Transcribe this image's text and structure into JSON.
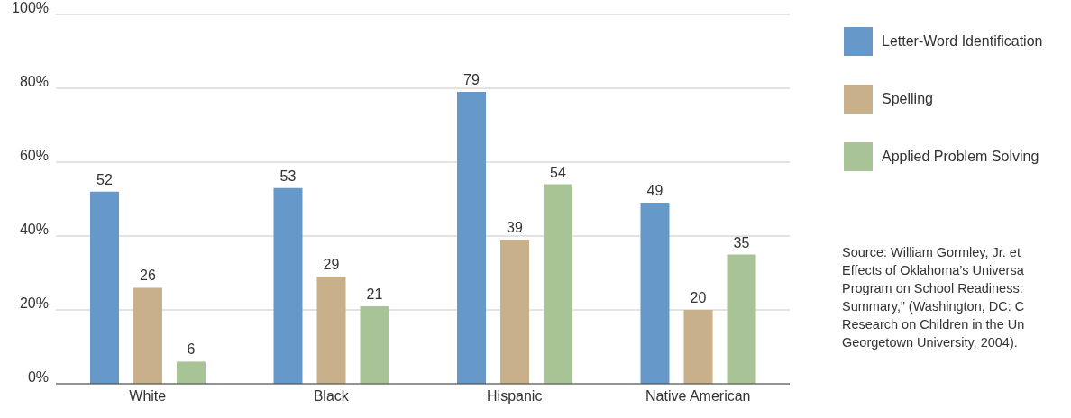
{
  "chart_data": {
    "type": "bar",
    "categories": [
      "White",
      "Black",
      "Hispanic",
      "Native American"
    ],
    "series": [
      {
        "name": "Letter-Word Identification",
        "color": "#6699c9",
        "values": [
          52,
          53,
          79,
          49
        ]
      },
      {
        "name": "Spelling",
        "color": "#c8b08a",
        "values": [
          26,
          29,
          39,
          20
        ]
      },
      {
        "name": "Applied Problem Solving",
        "color": "#a8c497",
        "values": [
          6,
          21,
          54,
          35
        ]
      }
    ],
    "ylim": [
      0,
      100
    ],
    "yticks": [
      {
        "value": 0,
        "label": "0%"
      },
      {
        "value": 20,
        "label": "20%"
      },
      {
        "value": 40,
        "label": "40%"
      },
      {
        "value": 60,
        "label": "60%"
      },
      {
        "value": 80,
        "label": "80%"
      },
      {
        "value": 100,
        "label": "100%"
      }
    ],
    "grid": "y",
    "legend": "right",
    "data_labels": true,
    "annotations": [
      "Source: William Gormley, Jr. et\nEffects of Oklahoma’s Universa\nProgram on School Readiness:\nSummary,” (Washington, DC: C\nResearch on Children in the Un\nGeorgetown University, 2004)."
    ]
  }
}
